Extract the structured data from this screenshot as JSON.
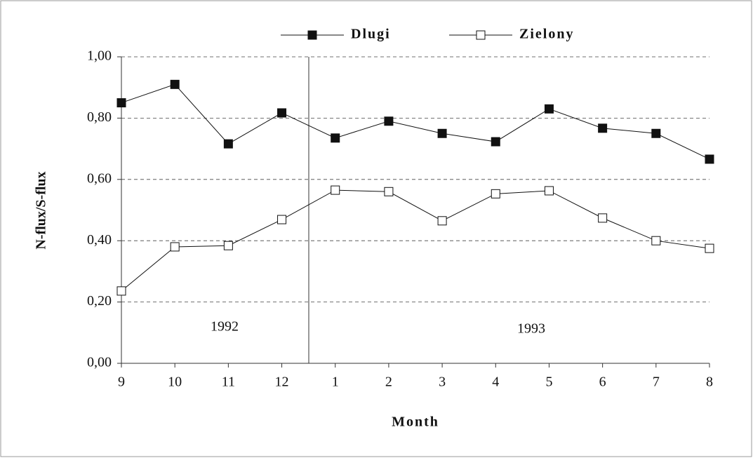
{
  "chart_data": {
    "type": "line",
    "x_label": "Month",
    "y_label": "N-flux/S-flux",
    "annotations": [
      "1992",
      "1993"
    ],
    "categories": [
      "9",
      "10",
      "11",
      "12",
      "1",
      "2",
      "3",
      "4",
      "5",
      "6",
      "7",
      "8"
    ],
    "series": [
      {
        "name": "Dlugi",
        "color": "#111111",
        "marker_fill": "#111111",
        "values": [
          0.85,
          0.91,
          0.716,
          0.817,
          0.735,
          0.79,
          0.75,
          0.723,
          0.83,
          0.767,
          0.75,
          0.666
        ]
      },
      {
        "name": "Zielony",
        "color": "#111111",
        "marker_fill": "#ffffff",
        "values": [
          0.236,
          0.38,
          0.384,
          0.469,
          0.565,
          0.56,
          0.465,
          0.553,
          0.563,
          0.474,
          0.4,
          0.375
        ]
      }
    ],
    "ylim": [
      0,
      1
    ],
    "yticks": [
      {
        "value": 0,
        "label": "0,00"
      },
      {
        "value": 0.2,
        "label": "0,20"
      },
      {
        "value": 0.4,
        "label": "0,40"
      },
      {
        "value": 0.6,
        "label": "0,60"
      },
      {
        "value": 0.8,
        "label": "0,80"
      },
      {
        "value": 1,
        "label": "1,00"
      }
    ],
    "grid": true
  }
}
